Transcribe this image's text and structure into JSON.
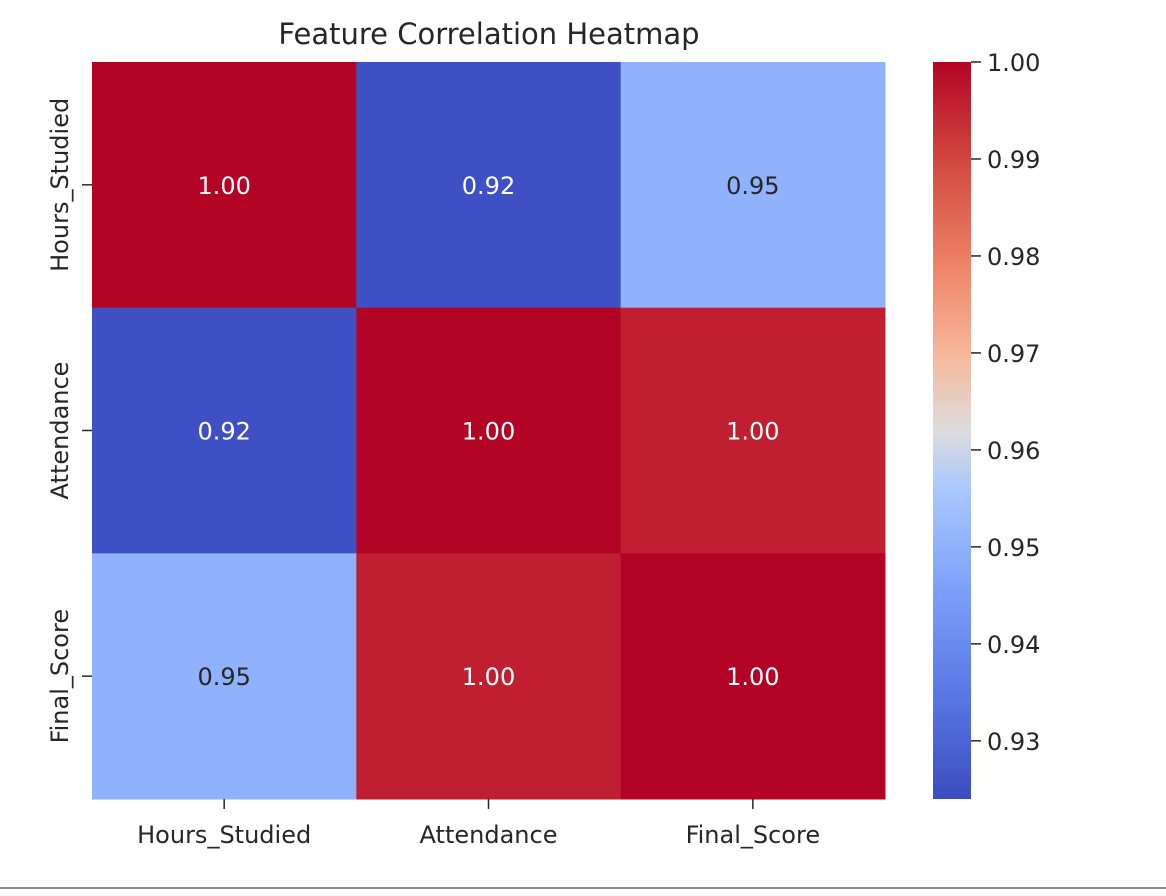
{
  "chart_data": {
    "type": "heatmap",
    "title": "Feature Correlation Heatmap",
    "xlabel": "",
    "ylabel": "",
    "x_categories": [
      "Hours_Studied",
      "Attendance",
      "Final_Score"
    ],
    "y_categories": [
      "Hours_Studied",
      "Attendance",
      "Final_Score"
    ],
    "values": [
      [
        1.0,
        0.925,
        0.95
      ],
      [
        0.925,
        1.0,
        0.996
      ],
      [
        0.95,
        0.996,
        1.0
      ]
    ],
    "annotations": [
      [
        "1.00",
        "0.92",
        "0.95"
      ],
      [
        "0.92",
        "1.00",
        "1.00"
      ],
      [
        "0.95",
        "1.00",
        "1.00"
      ]
    ],
    "colormap": "coolwarm",
    "colorbar": {
      "range": [
        0.924,
        1.0
      ],
      "ticks": [
        0.93,
        0.94,
        0.95,
        0.96,
        0.97,
        0.98,
        0.99,
        1.0
      ],
      "tick_labels": [
        "0.93",
        "0.94",
        "0.95",
        "0.96",
        "0.97",
        "0.98",
        "0.99",
        "1.00"
      ]
    },
    "legend": "right colorbar",
    "grid": false
  }
}
